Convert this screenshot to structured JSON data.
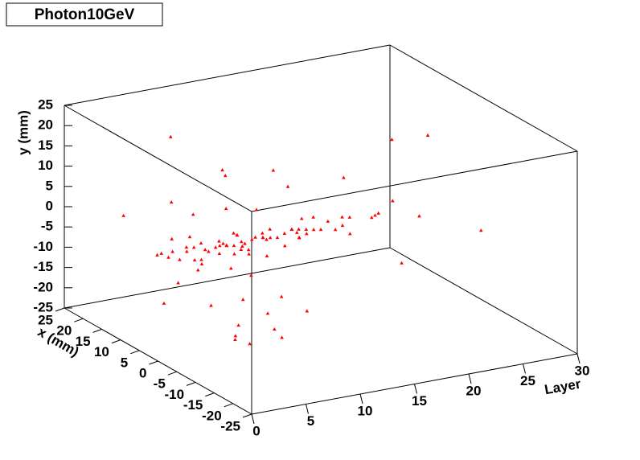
{
  "chart_data": {
    "type": "scatter3d",
    "title": "Photon10GeV",
    "x_label": "Layer",
    "y_label": "x (mm)",
    "z_label": "y (mm)",
    "color": "#ff0000",
    "xlim": [
      0,
      30
    ],
    "xticks": [
      0,
      5,
      10,
      15,
      20,
      25,
      30
    ],
    "ylim": [
      -25,
      25
    ],
    "yticks": [
      -25,
      -20,
      -15,
      -10,
      -5,
      0,
      5,
      10,
      15,
      20,
      25
    ],
    "zlim": [
      -25,
      25
    ],
    "zticks": [
      -25,
      -20,
      -15,
      -10,
      -5,
      0,
      5,
      10,
      15,
      20,
      25
    ],
    "layer": [
      1,
      1,
      2,
      2,
      2,
      3,
      3,
      3,
      3,
      4,
      4,
      4,
      4,
      5,
      5,
      5,
      5,
      5,
      6,
      6,
      6,
      6,
      6,
      7,
      7,
      7,
      7,
      7,
      8,
      8,
      8,
      8,
      8,
      9,
      9,
      9,
      9,
      10,
      10,
      10,
      10,
      11,
      11,
      11,
      11,
      12,
      12,
      12,
      13,
      13,
      13,
      14,
      14,
      14,
      15,
      15,
      16,
      16,
      17,
      17,
      18,
      18,
      19,
      20,
      21,
      22,
      23,
      25,
      27,
      29,
      2,
      3,
      4,
      5,
      6,
      7,
      8,
      9,
      10,
      12,
      3,
      4,
      5,
      6,
      7,
      8,
      9,
      11,
      14,
      16,
      2,
      5,
      8,
      10,
      13,
      4,
      6,
      9,
      12,
      19
    ],
    "x": [
      2,
      -1,
      3,
      -4,
      0,
      1,
      -2,
      5,
      -3,
      2,
      0,
      -1,
      4,
      3,
      -2,
      1,
      6,
      -5,
      0,
      2,
      -3,
      1,
      -1,
      4,
      0,
      -2,
      2,
      -4,
      1,
      3,
      -1,
      0,
      2,
      -3,
      1,
      5,
      -2,
      0,
      3,
      -1,
      1,
      -2,
      2,
      0,
      4,
      -1,
      1,
      -3,
      0,
      2,
      -2,
      1,
      3,
      -1,
      0,
      2,
      -1,
      1,
      0,
      -2,
      1,
      3,
      -2,
      0,
      2,
      -6,
      4,
      10,
      -8,
      12,
      15,
      -12,
      8,
      -10,
      14,
      -9,
      6,
      -7,
      11,
      -5,
      -14,
      10,
      -8,
      12,
      -6,
      9,
      -11,
      7,
      -9,
      8,
      6,
      -7,
      5,
      -4,
      3,
      -9,
      8,
      -5,
      4,
      -10
    ],
    "y": [
      0,
      2,
      -2,
      1,
      -1,
      0,
      -3,
      1,
      -1,
      0,
      -2,
      1,
      -1,
      0,
      2,
      -1,
      0,
      -2,
      1,
      -1,
      0,
      -2,
      1,
      -1,
      0,
      2,
      -1,
      0,
      -2,
      1,
      -1,
      0,
      1,
      -2,
      0,
      -1,
      2,
      0,
      -1,
      1,
      0,
      -1,
      1,
      0,
      -1,
      2,
      0,
      1,
      -1,
      0,
      1,
      0,
      -1,
      1,
      0,
      2,
      0,
      1,
      0,
      -1,
      1,
      0,
      2,
      1,
      0,
      3,
      1,
      12,
      -2,
      10,
      2,
      -14,
      8,
      -18,
      20,
      -12,
      15,
      -20,
      10,
      -16,
      -4,
      -18,
      5,
      -15,
      12,
      -20,
      8,
      -13,
      18,
      -2,
      -3,
      -15,
      6,
      -12,
      10,
      -17,
      4,
      -19,
      14,
      -5
    ]
  }
}
